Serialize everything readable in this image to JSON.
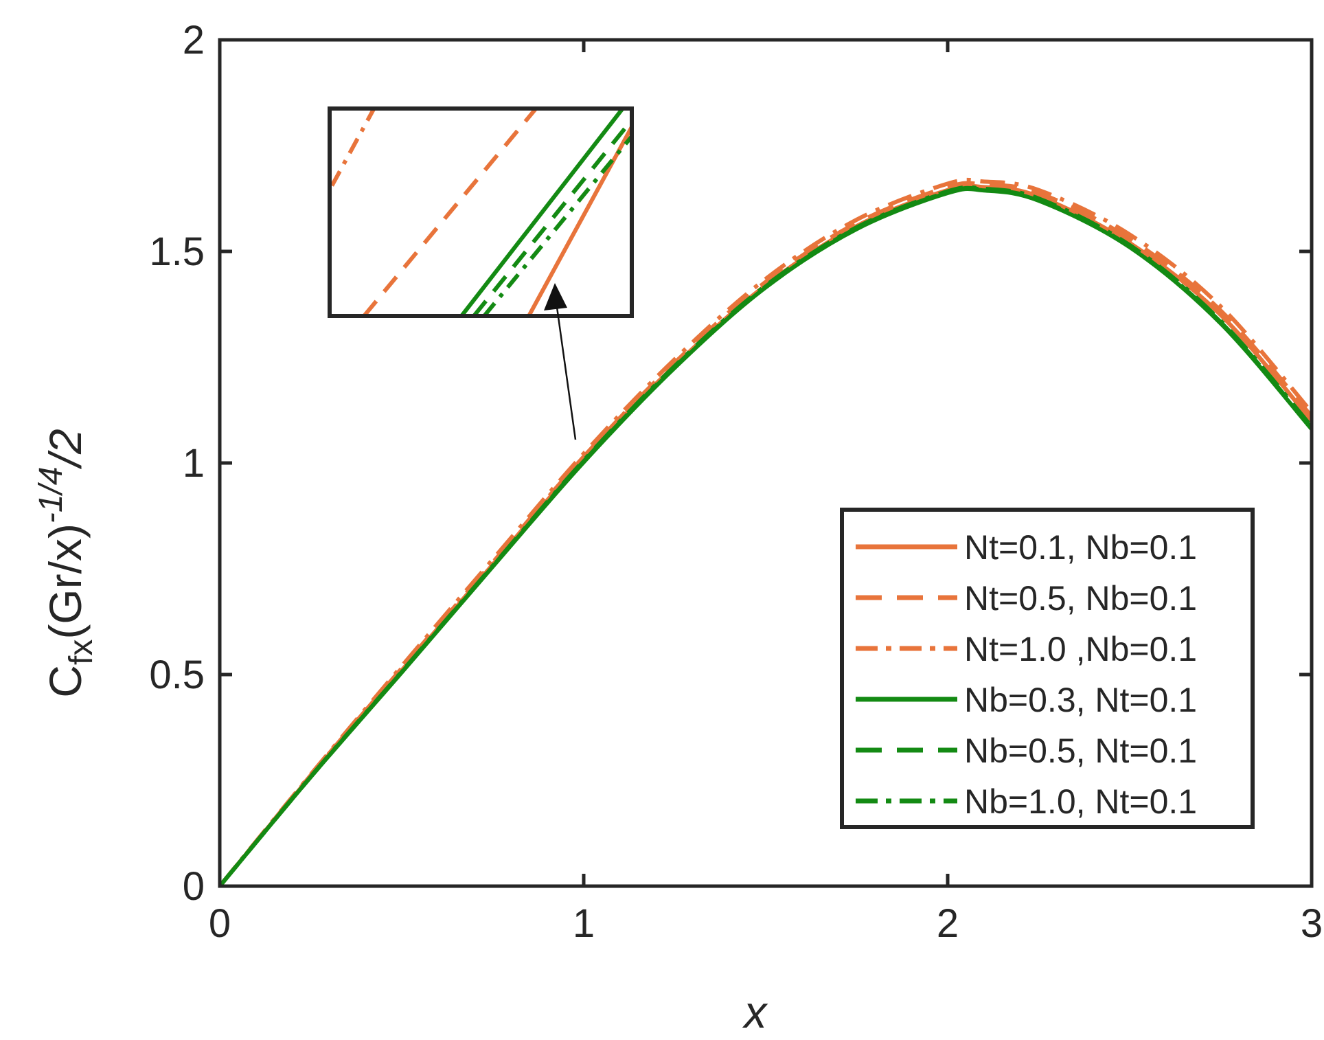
{
  "chart_data": {
    "type": "line",
    "xlabel": "x",
    "ylabel": {
      "base": "C",
      "sub": "fx",
      "mid": "(Gr/x)",
      "sup": "-1/4",
      "tail": "/2"
    },
    "xlim": [
      0,
      3
    ],
    "ylim": [
      0,
      2
    ],
    "xticks": [
      0,
      1,
      2,
      3
    ],
    "xtick_labels": [
      "0",
      "1",
      "2",
      "3"
    ],
    "yticks": [
      0,
      0.5,
      1,
      1.5,
      2
    ],
    "ytick_labels": [
      "0",
      "0.5",
      "1",
      "1.5",
      "2"
    ],
    "grid": false,
    "legend_position": "lower-right",
    "colors": {
      "orange": "#E8743B",
      "green": "#138A13",
      "axis": "#262626"
    },
    "x": [
      0,
      0.25,
      0.5,
      0.75,
      1.0,
      1.25,
      1.5,
      1.75,
      2.0,
      2.1,
      2.25,
      2.5,
      2.75,
      3.0
    ],
    "series": [
      {
        "name": "Nt=0.1, Nb=0.1",
        "color": "#E8743B",
        "dash": "solid",
        "values": [
          0,
          0.26,
          0.51,
          0.76,
          1.01,
          1.23,
          1.42,
          1.56,
          1.645,
          1.652,
          1.63,
          1.52,
          1.35,
          1.1
        ]
      },
      {
        "name": "Nt=0.5, Nb=0.1",
        "color": "#E8743B",
        "dash": "dashed",
        "values": [
          0,
          0.262,
          0.515,
          0.765,
          1.015,
          1.237,
          1.428,
          1.567,
          1.652,
          1.658,
          1.638,
          1.53,
          1.36,
          1.11
        ]
      },
      {
        "name": "Nt=1.0 ,Nb=0.1",
        "color": "#E8743B",
        "dash": "dashdot",
        "values": [
          0,
          0.264,
          0.52,
          0.772,
          1.022,
          1.245,
          1.435,
          1.575,
          1.66,
          1.665,
          1.645,
          1.54,
          1.37,
          1.12
        ]
      },
      {
        "name": "Nb=0.3, Nt=0.1",
        "color": "#138A13",
        "dash": "solid",
        "values": [
          0,
          0.258,
          0.505,
          0.755,
          1.002,
          1.225,
          1.415,
          1.553,
          1.638,
          1.644,
          1.62,
          1.51,
          1.33,
          1.08
        ]
      },
      {
        "name": "Nb=0.5, Nt=0.1",
        "color": "#138A13",
        "dash": "dashed",
        "values": [
          0,
          0.258,
          0.506,
          0.756,
          1.004,
          1.227,
          1.417,
          1.555,
          1.64,
          1.646,
          1.622,
          1.512,
          1.333,
          1.083
        ]
      },
      {
        "name": "Nb=1.0, Nt=0.1",
        "color": "#138A13",
        "dash": "dashdot",
        "values": [
          0,
          0.259,
          0.507,
          0.757,
          1.006,
          1.229,
          1.419,
          1.557,
          1.642,
          1.648,
          1.625,
          1.515,
          1.336,
          1.086
        ]
      }
    ]
  }
}
